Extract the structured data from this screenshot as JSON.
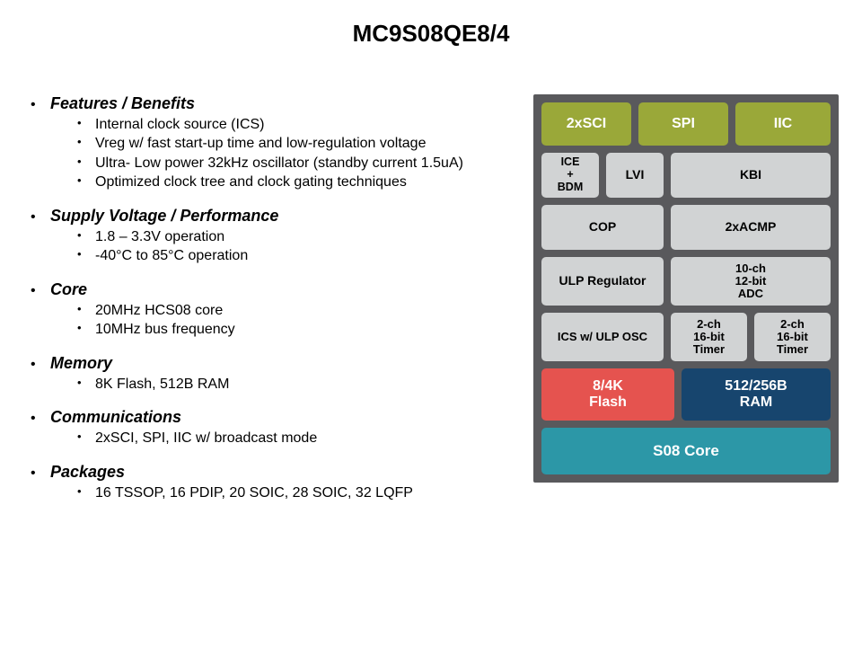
{
  "title": "MC9S08QE8/4",
  "sections": [
    {
      "heading": "Features / Benefits",
      "items": [
        "Internal clock source (ICS)",
        "Vreg w/ fast start-up time and low-regulation voltage",
        "Ultra- Low power 32kHz oscillator (standby current 1.5uA)",
        "Optimized clock tree and clock gating techniques"
      ]
    },
    {
      "heading": "Supply Voltage / Performance",
      "items": [
        "1.8 – 3.3V operation",
        "-40°C to 85°C operation"
      ]
    },
    {
      "heading": "Core",
      "items": [
        "20MHz HCS08 core",
        "10MHz bus frequency"
      ]
    },
    {
      "heading": "Memory",
      "items": [
        "8K Flash, 512B RAM"
      ]
    },
    {
      "heading": "Communications",
      "items": [
        "2xSCI, SPI, IIC w/ broadcast mode"
      ]
    },
    {
      "heading": "Packages",
      "items": [
        "16 TSSOP, 16 PDIP, 20 SOIC, 28 SOIC, 32 LQFP"
      ]
    }
  ],
  "diagram": {
    "background": "#59595c",
    "colors": {
      "olive": "#9aa839",
      "gray": "#d1d3d4",
      "red": "#e5534f",
      "navy": "#17456e",
      "teal": "#2c97a7"
    },
    "row1": {
      "a": "2xSCI",
      "b": "SPI",
      "c": "IIC"
    },
    "row2": {
      "a": "ICE\n+\nBDM",
      "b": "LVI",
      "c": "KBI"
    },
    "row3": {
      "a": "COP",
      "b": "2xACMP"
    },
    "row4": {
      "a": "ULP Regulator",
      "b": "10-ch\n12-bit\nADC"
    },
    "row5": {
      "a": "ICS w/ ULP OSC",
      "b": "2-ch\n16-bit\nTimer",
      "c": "2-ch\n16-bit\nTimer"
    },
    "row6": {
      "a": "8/4K\nFlash",
      "b": "512/256B\nRAM"
    },
    "row7": {
      "a": "S08 Core"
    }
  }
}
